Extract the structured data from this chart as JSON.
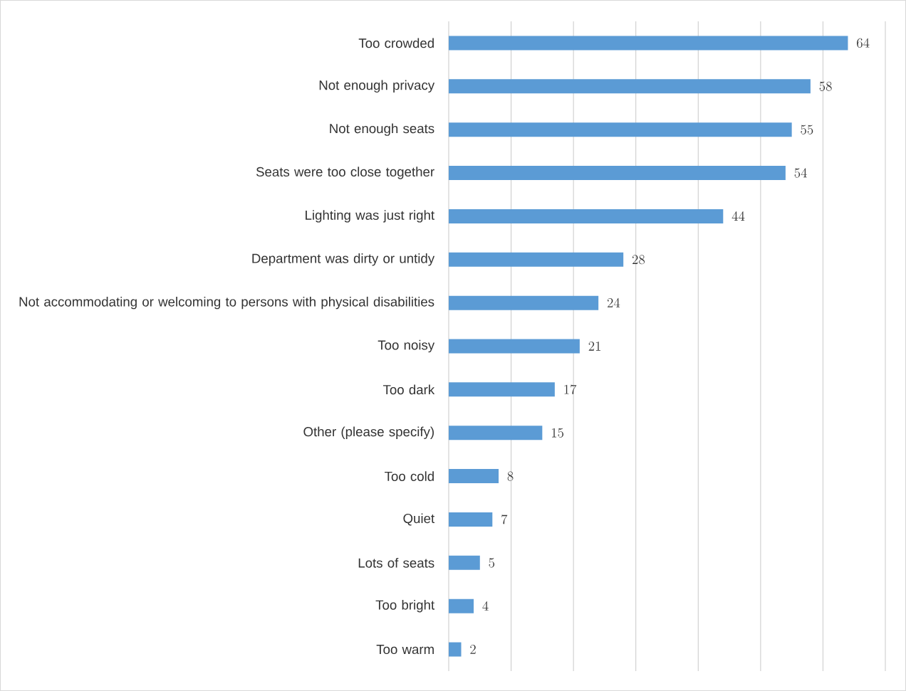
{
  "chart_data": {
    "type": "bar",
    "orientation": "horizontal",
    "categories": [
      "Too crowded",
      "Not enough privacy",
      "Not enough seats",
      "Seats were too close together",
      "Lighting was just right",
      "Department was dirty or untidy",
      "Not accommodating or welcoming to persons with physical disabilities",
      "Too noisy",
      "Too dark",
      "Other (please specify)",
      "Too cold",
      "Quiet",
      "Lots of seats",
      "Too bright",
      "Too warm"
    ],
    "values": [
      64,
      58,
      55,
      54,
      44,
      28,
      24,
      21,
      17,
      15,
      8,
      7,
      5,
      4,
      2
    ],
    "color": "#5b9bd5",
    "xlim": [
      0,
      70
    ],
    "xticks": [
      {
        "value": 0,
        "label": null
      },
      {
        "value": 10,
        "label": null
      },
      {
        "value": 20,
        "label": null
      },
      {
        "value": 30,
        "label": null
      },
      {
        "value": 40,
        "label": null
      },
      {
        "value": 50,
        "label": null
      },
      {
        "value": 60,
        "label": null
      },
      {
        "value": 70,
        "label": null
      }
    ],
    "grid": "x",
    "data_labels": true,
    "tick_labels": "y"
  }
}
